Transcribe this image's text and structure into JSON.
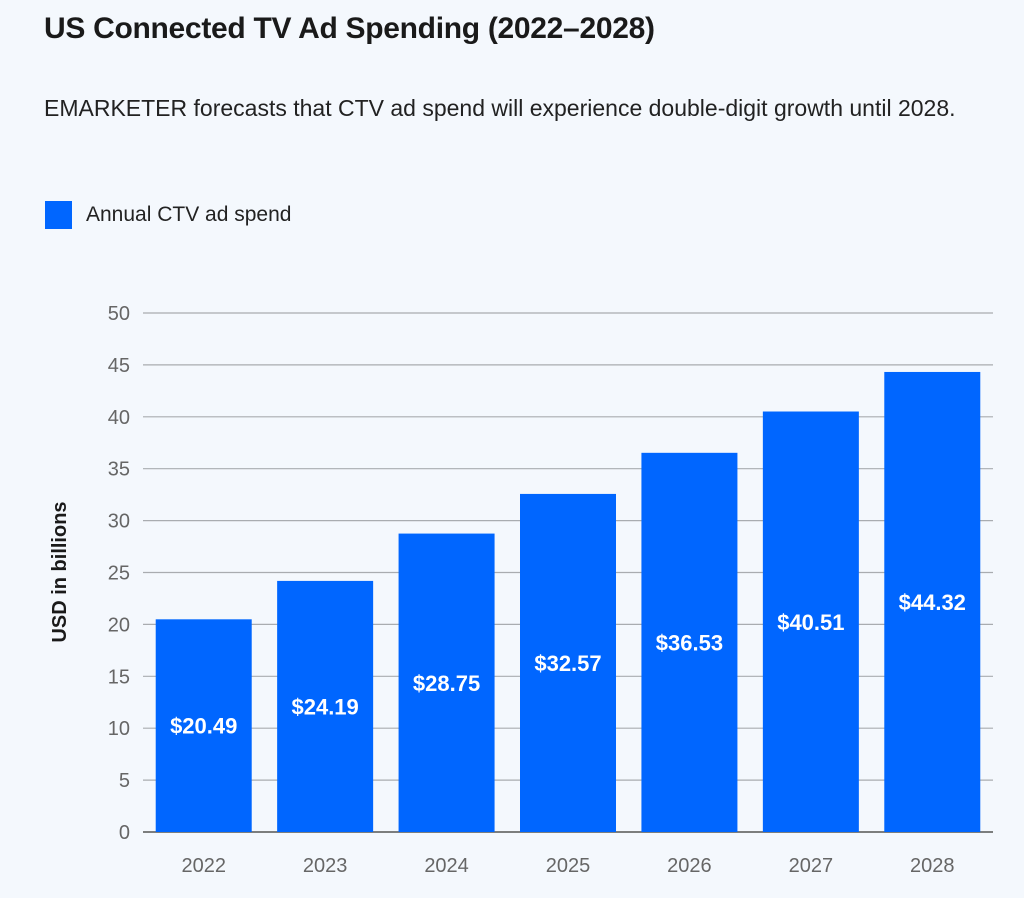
{
  "title": "US Connected TV Ad Spending (2022–2028)",
  "subtitle": "EMARKETER forecasts that CTV ad spend will experience double-digit growth until 2028.",
  "colors": {
    "bar": "#0066ff",
    "background": "#f4f8fd",
    "grid": "#a9acb0"
  },
  "chart_data": {
    "type": "bar",
    "categories": [
      "2022",
      "2023",
      "2024",
      "2025",
      "2026",
      "2027",
      "2028"
    ],
    "series": [
      {
        "name": "Annual CTV ad spend",
        "values": [
          20.49,
          24.19,
          28.75,
          32.57,
          36.53,
          40.51,
          44.32
        ]
      }
    ],
    "data_labels": [
      "$20.49",
      "$24.19",
      "$28.75",
      "$32.57",
      "$36.53",
      "$40.51",
      "$44.32"
    ],
    "xlabel": "",
    "ylabel": "USD in billions",
    "ylim": [
      0,
      50
    ],
    "yticks": [
      0,
      5,
      10,
      15,
      20,
      25,
      30,
      35,
      40,
      45,
      50
    ],
    "grid": true,
    "legend": "top-left"
  }
}
